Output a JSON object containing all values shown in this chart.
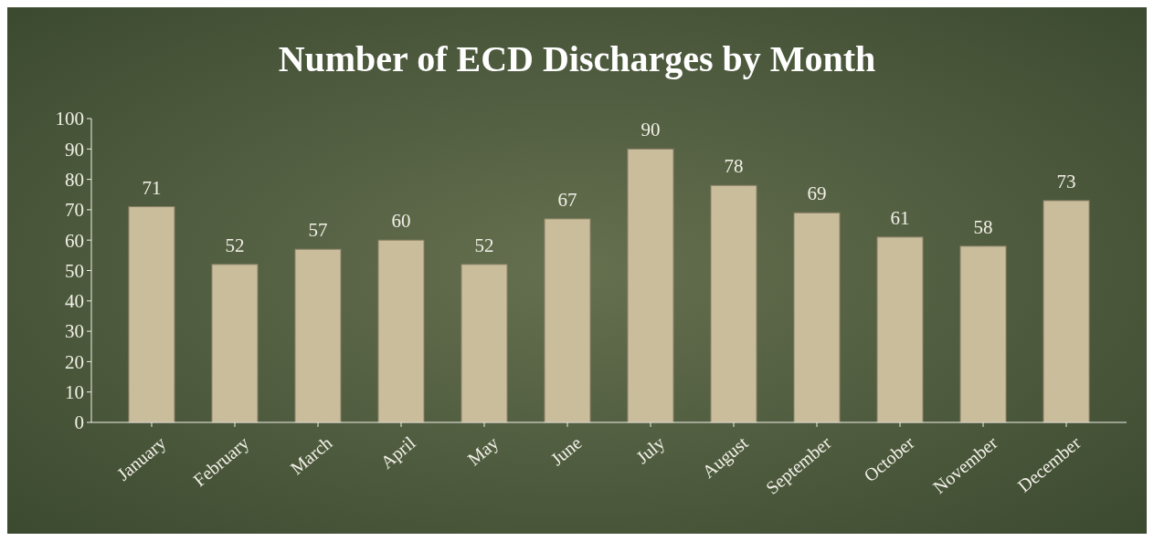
{
  "chart_data": {
    "type": "bar",
    "title": "Number of ECD Discharges by Month",
    "categories": [
      "January",
      "February",
      "March",
      "April",
      "May",
      "June",
      "July",
      "August",
      "September",
      "October",
      "November",
      "December"
    ],
    "values": [
      71,
      52,
      57,
      60,
      52,
      67,
      90,
      78,
      69,
      61,
      58,
      73
    ],
    "color": "#c9bd9c",
    "ylim": [
      0,
      100
    ],
    "yticks": [
      0,
      10,
      20,
      30,
      40,
      50,
      60,
      70,
      80,
      90,
      100
    ],
    "data_labels": true
  }
}
